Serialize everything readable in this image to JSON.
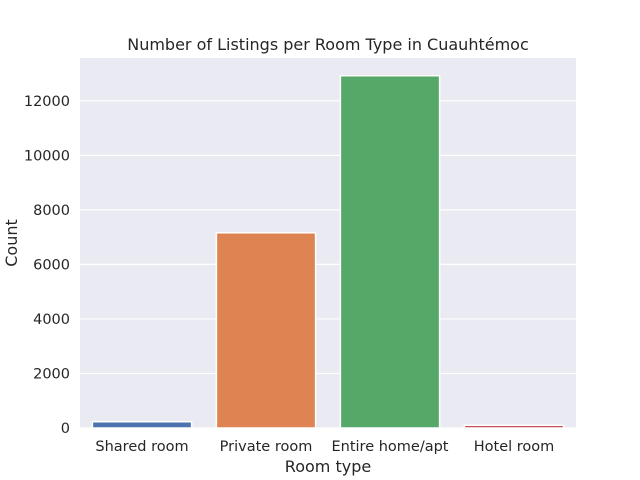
{
  "chart_data": {
    "type": "bar",
    "title": "Number of Listings per Room Type in Cuauhtémoc",
    "xlabel": "Room type",
    "ylabel": "Count",
    "categories": [
      "Shared room",
      "Private room",
      "Entire home/apt",
      "Hotel room"
    ],
    "values": [
      230,
      7160,
      12920,
      100
    ],
    "colors": [
      "#4c72b0",
      "#dd8452",
      "#55a868",
      "#c44e52"
    ],
    "ylim": [
      0,
      13570
    ],
    "yticks": [
      0,
      2000,
      4000,
      6000,
      8000,
      10000,
      12000
    ],
    "grid": true,
    "background": "#eaeaf2"
  }
}
